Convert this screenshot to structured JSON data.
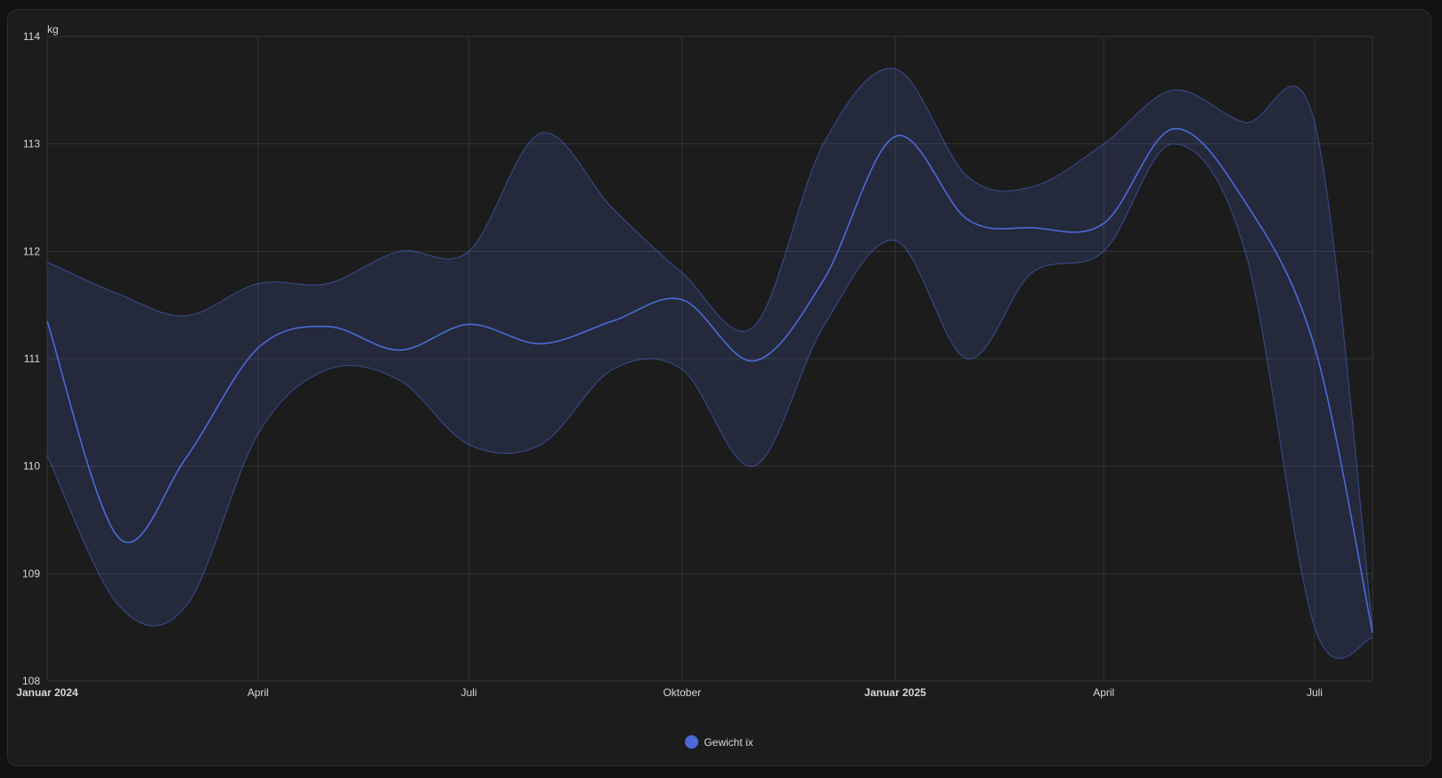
{
  "chart_data": {
    "type": "area",
    "y_unit": "kg",
    "ylim": [
      108,
      114
    ],
    "x_range": [
      "2024-01-01",
      "2025-07-26"
    ],
    "y_ticks": [
      "108",
      "109",
      "110",
      "111",
      "112",
      "113",
      "114"
    ],
    "x_ticks": [
      {
        "date": "2024-01-01",
        "label": "Januar 2024",
        "bold": true
      },
      {
        "date": "2024-04-01",
        "label": "April",
        "bold": false
      },
      {
        "date": "2024-07-01",
        "label": "Juli",
        "bold": false
      },
      {
        "date": "2024-10-01",
        "label": "Oktober",
        "bold": false
      },
      {
        "date": "2025-01-01",
        "label": "Januar 2025",
        "bold": true
      },
      {
        "date": "2025-04-01",
        "label": "April",
        "bold": false
      },
      {
        "date": "2025-07-01",
        "label": "Juli",
        "bold": false
      }
    ],
    "grid": true,
    "legend_position": "bottom-center",
    "series": [
      {
        "name": "Gewicht ix",
        "color": "#4b6ad8",
        "points": [
          {
            "date": "2024-01-01",
            "mean": 111.35,
            "min": 110.1,
            "max": 111.9
          },
          {
            "date": "2024-02-01",
            "mean": 109.33,
            "min": 108.7,
            "max": 111.6
          },
          {
            "date": "2024-03-01",
            "mean": 110.08,
            "min": 108.7,
            "max": 111.4
          },
          {
            "date": "2024-04-01",
            "mean": 111.1,
            "min": 110.3,
            "max": 111.7
          },
          {
            "date": "2024-05-01",
            "mean": 111.3,
            "min": 110.9,
            "max": 111.7
          },
          {
            "date": "2024-06-01",
            "mean": 111.08,
            "min": 110.8,
            "max": 112.0
          },
          {
            "date": "2024-07-01",
            "mean": 111.32,
            "min": 110.2,
            "max": 112.0
          },
          {
            "date": "2024-08-01",
            "mean": 111.14,
            "min": 110.2,
            "max": 113.1
          },
          {
            "date": "2024-09-01",
            "mean": 111.35,
            "min": 110.9,
            "max": 112.4
          },
          {
            "date": "2024-10-01",
            "mean": 111.55,
            "min": 110.9,
            "max": 111.8
          },
          {
            "date": "2024-11-01",
            "mean": 110.98,
            "min": 110.0,
            "max": 111.3
          },
          {
            "date": "2024-12-01",
            "mean": 111.73,
            "min": 111.3,
            "max": 113.0
          },
          {
            "date": "2025-01-01",
            "mean": 113.07,
            "min": 112.1,
            "max": 113.7
          },
          {
            "date": "2025-02-01",
            "mean": 112.3,
            "min": 111.0,
            "max": 112.7
          },
          {
            "date": "2025-03-01",
            "mean": 112.22,
            "min": 111.8,
            "max": 112.6
          },
          {
            "date": "2025-04-01",
            "mean": 112.26,
            "min": 112.0,
            "max": 113.0
          },
          {
            "date": "2025-05-01",
            "mean": 113.14,
            "min": 113.0,
            "max": 113.5
          },
          {
            "date": "2025-06-01",
            "mean": 112.46,
            "min": 112.0,
            "max": 113.2
          },
          {
            "date": "2025-07-01",
            "mean": 111.11,
            "min": 108.5,
            "max": 113.2
          },
          {
            "date": "2025-07-26",
            "mean": 108.45,
            "min": 108.4,
            "max": 108.5
          }
        ]
      }
    ]
  }
}
